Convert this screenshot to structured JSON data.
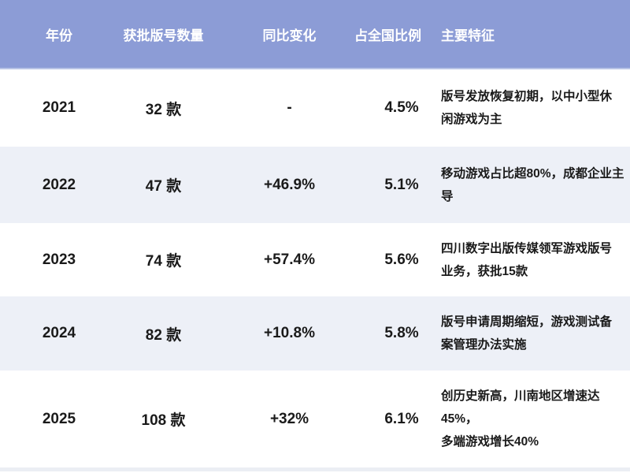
{
  "table": {
    "header": {
      "columns": [
        "年份",
        "获批版号数量",
        "同比变化",
        "占全国比例",
        "主要特征"
      ]
    },
    "rows": [
      {
        "year": "2021",
        "count": "32 款",
        "change": "-",
        "share": "4.5%",
        "features": "版号发放恢复初期，以中小型休\n闲游戏为主"
      },
      {
        "year": "2022",
        "count": "47 款",
        "change": "+46.9%",
        "share": "5.1%",
        "features": "移动游戏占比超80%，成都企业主\n导"
      },
      {
        "year": "2023",
        "count": "74 款",
        "change": "+57.4%",
        "share": "5.6%",
        "features": "四川数字出版传媒领军游戏版号\n业务，获批15款"
      },
      {
        "year": "2024",
        "count": "82 款",
        "change": "+10.8%",
        "share": "5.8%",
        "features": "版号申请周期缩短，游戏测试备\n案管理办法实施"
      },
      {
        "year": "2025",
        "count": "108 款",
        "change": "+32%",
        "share": "6.1%",
        "features": "创历史新高，川南地区增速达45%，\n多端游戏增长40%"
      }
    ],
    "colors": {
      "header_bg": "#8C9CD6",
      "header_text": "#FFFFFF",
      "row_bg": "#FFFFFF",
      "row_alt_bg": "#EDF0F7",
      "data_text": "#1A1A1A",
      "bottom_strip_bg": "#EBEEF4"
    }
  },
  "chart_data": {
    "type": "table",
    "columns": [
      "年份",
      "获批版号数量",
      "同比变化",
      "占全国比例",
      "主要特征"
    ],
    "rows": [
      [
        "2021",
        "32 款",
        "-",
        "4.5%",
        "版号发放恢复初期，以中小型休闲游戏为主"
      ],
      [
        "2022",
        "47 款",
        "+46.9%",
        "5.1%",
        "移动游戏占比超80%，成都企业主导"
      ],
      [
        "2023",
        "74 款",
        "+57.4%",
        "5.6%",
        "四川数字出版传媒领军游戏版号业务，获批15款"
      ],
      [
        "2024",
        "82 款",
        "+10.8%",
        "5.8%",
        "版号申请周期缩短，游戏测试备案管理办法实施"
      ],
      [
        "2025",
        "108 款",
        "+32%",
        "6.1%",
        "创历史新高，川南地区增速达45%，多端游戏增长40%"
      ]
    ],
    "numeric": {
      "years": [
        2021,
        2022,
        2023,
        2024,
        2025
      ],
      "approved_counts": [
        32,
        47,
        74,
        82,
        108
      ],
      "yoy_change_pct": [
        null,
        46.9,
        57.4,
        10.8,
        32
      ],
      "national_share_pct": [
        4.5,
        5.1,
        5.6,
        5.8,
        6.1
      ]
    }
  }
}
